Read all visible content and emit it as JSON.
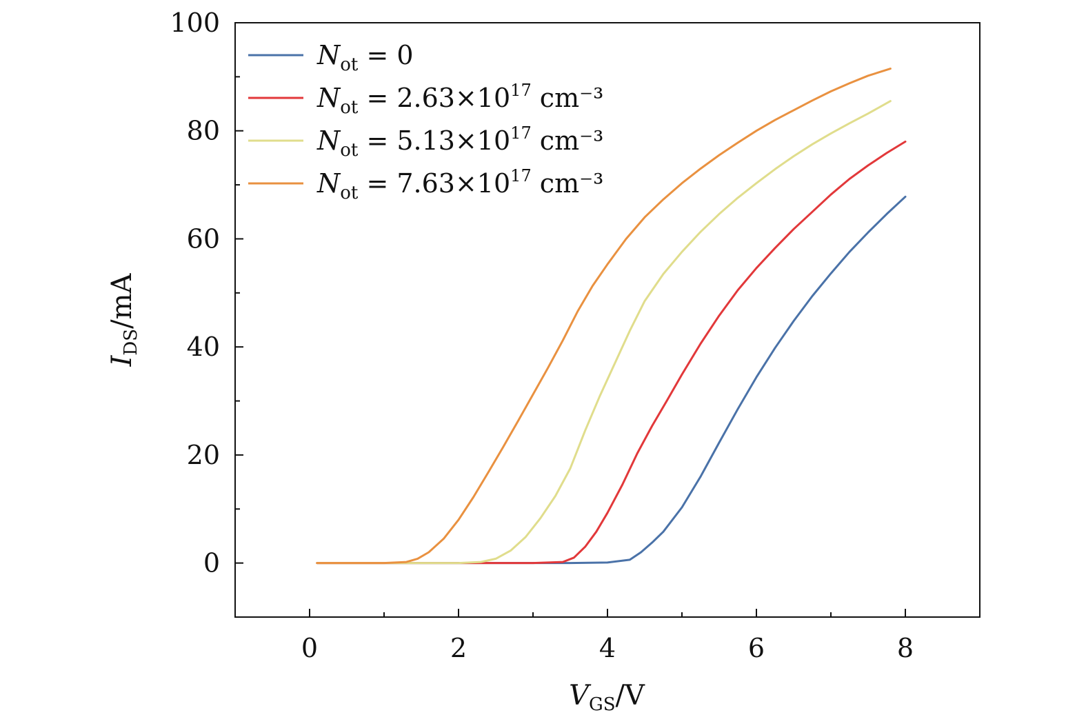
{
  "chart_data": {
    "type": "line",
    "xlabel": {
      "main": "V",
      "sub": "GS",
      "unit": "/V"
    },
    "ylabel": {
      "main": "I",
      "sub": "DS",
      "unit": "/mA"
    },
    "xlim": [
      -1,
      9
    ],
    "ylim": [
      -10,
      100
    ],
    "xticks": [
      0,
      2,
      4,
      6,
      8
    ],
    "yticks": [
      0,
      20,
      40,
      60,
      80,
      100
    ],
    "x_minor_ticks": [
      1,
      3,
      5,
      7
    ],
    "y_minor_ticks": [
      10,
      30,
      50,
      70,
      90
    ],
    "grid": false,
    "legend_position": "top-left",
    "series": [
      {
        "name": "Nₒₜ = 0",
        "label": {
          "sym": "N",
          "sub": "ot",
          "eq": " = ",
          "val": "0",
          "sup": "",
          "tail": ""
        },
        "color": "#4a72a8",
        "x": [
          0.1,
          1.0,
          2.0,
          3.0,
          3.5,
          4.0,
          4.3,
          4.45,
          4.6,
          4.75,
          5.0,
          5.25,
          5.5,
          5.75,
          6.0,
          6.25,
          6.5,
          6.75,
          7.0,
          7.25,
          7.5,
          7.75,
          8.0
        ],
        "values": [
          0,
          0,
          0,
          0,
          0,
          0.1,
          0.6,
          2.0,
          3.8,
          5.8,
          10.3,
          16.0,
          22.3,
          28.5,
          34.4,
          39.8,
          44.8,
          49.4,
          53.6,
          57.6,
          61.2,
          64.6,
          67.8
        ]
      },
      {
        "name": "Nₒₜ = 2.63×10¹⁷ cm⁻³",
        "label": {
          "sym": "N",
          "sub": "ot",
          "eq": " = ",
          "val": "2.63×10",
          "sup": "17",
          "tail": " cm⁻³"
        },
        "color": "#e2383a",
        "x": [
          0.1,
          1.0,
          2.0,
          3.0,
          3.4,
          3.55,
          3.7,
          3.85,
          4.0,
          4.2,
          4.4,
          4.6,
          4.8,
          5.0,
          5.25,
          5.5,
          5.75,
          6.0,
          6.25,
          6.5,
          6.75,
          7.0,
          7.25,
          7.5,
          7.75,
          8.0
        ],
        "values": [
          0,
          0,
          0,
          0,
          0.2,
          1.0,
          3.0,
          5.8,
          9.3,
          14.5,
          20.3,
          25.4,
          30.1,
          34.9,
          40.6,
          45.8,
          50.5,
          54.6,
          58.3,
          61.8,
          65.0,
          68.2,
          71.1,
          73.6,
          75.9,
          78.0
        ]
      },
      {
        "name": "Nₒₜ = 5.13×10¹⁷ cm⁻³",
        "label": {
          "sym": "N",
          "sub": "ot",
          "eq": " = ",
          "val": "5.13×10",
          "sup": "17",
          "tail": " cm⁻³"
        },
        "color": "#e0dd8c",
        "x": [
          0.1,
          1.0,
          2.0,
          2.3,
          2.5,
          2.7,
          2.9,
          3.1,
          3.3,
          3.5,
          3.7,
          3.9,
          4.1,
          4.3,
          4.5,
          4.75,
          5.0,
          5.25,
          5.5,
          5.75,
          6.0,
          6.25,
          6.5,
          6.75,
          7.0,
          7.25,
          7.5,
          7.8
        ],
        "values": [
          0,
          0,
          0,
          0.2,
          0.8,
          2.3,
          4.8,
          8.3,
          12.4,
          17.5,
          24.5,
          31.0,
          37.0,
          43.0,
          48.5,
          53.5,
          57.6,
          61.3,
          64.6,
          67.6,
          70.3,
          72.9,
          75.3,
          77.5,
          79.5,
          81.4,
          83.2,
          85.5
        ]
      },
      {
        "name": "Nₒₜ = 7.63×10¹⁷ cm⁻³",
        "label": {
          "sym": "N",
          "sub": "ot",
          "eq": " = ",
          "val": "7.63×10",
          "sup": "17",
          "tail": " cm⁻³"
        },
        "color": "#e99140",
        "x": [
          0.1,
          1.0,
          1.3,
          1.45,
          1.6,
          1.8,
          2.0,
          2.2,
          2.4,
          2.6,
          2.8,
          3.0,
          3.2,
          3.4,
          3.6,
          3.8,
          4.0,
          4.25,
          4.5,
          4.75,
          5.0,
          5.25,
          5.5,
          5.75,
          6.0,
          6.25,
          6.5,
          6.75,
          7.0,
          7.25,
          7.5,
          7.8
        ],
        "values": [
          0,
          0,
          0.2,
          0.8,
          2.0,
          4.5,
          8.0,
          12.2,
          16.8,
          21.5,
          26.3,
          31.2,
          36.1,
          41.2,
          46.6,
          51.3,
          55.3,
          60.0,
          64.0,
          67.3,
          70.3,
          73.0,
          75.5,
          77.8,
          80.0,
          82.0,
          83.8,
          85.6,
          87.3,
          88.8,
          90.2,
          91.5
        ]
      }
    ]
  }
}
